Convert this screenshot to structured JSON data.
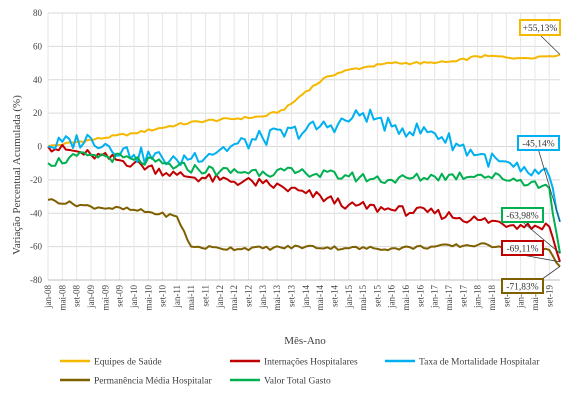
{
  "chart_data": {
    "type": "line",
    "xlabel": "Mês-Ano",
    "ylabel": "Variação Percentual Acumulada (%)",
    "ylim": [
      -80,
      80
    ],
    "yticks": [
      80,
      60,
      40,
      20,
      0,
      -20,
      -40,
      -60,
      -80
    ],
    "grid": true,
    "legend_position": "bottom",
    "x_start": "jan-08",
    "x_end": "dez-19",
    "x_tick_labels": [
      "jan-08",
      "mai-08",
      "set-08",
      "jan-09",
      "mai-09",
      "set-09",
      "jan-10",
      "mai-10",
      "set-10",
      "jan-11",
      "mai-11",
      "set-11",
      "jan-12",
      "mai-12",
      "set-12",
      "jan-13",
      "mai-13",
      "set-13",
      "jan-14",
      "mai-14",
      "set-14",
      "jan-15",
      "mai-15",
      "set-15",
      "jan-16",
      "mai-16",
      "set-16",
      "jan-17",
      "mai-17",
      "set-17",
      "jan-18",
      "mai-18",
      "set-18",
      "jan-19",
      "mai-19",
      "set-19"
    ],
    "series": [
      {
        "name": "Equipes de Saúde",
        "color": "#F5B800",
        "points": [
          [
            "jan-08",
            0
          ],
          [
            "jan-09",
            4
          ],
          [
            "jan-10",
            8
          ],
          [
            "jan-11",
            13
          ],
          [
            "jul-11",
            15
          ],
          [
            "jan-12",
            16
          ],
          [
            "jan-13",
            18
          ],
          [
            "jul-13",
            22
          ],
          [
            "jan-14",
            33
          ],
          [
            "jul-14",
            42
          ],
          [
            "jan-15",
            46
          ],
          [
            "jul-15",
            48
          ],
          [
            "jan-16",
            50
          ],
          [
            "jul-16",
            50
          ],
          [
            "jan-17",
            50
          ],
          [
            "jul-17",
            51
          ],
          [
            "jan-18",
            54
          ],
          [
            "jul-18",
            54
          ],
          [
            "jan-19",
            53
          ],
          [
            "jul-19",
            54
          ],
          [
            "dez-19",
            55.13
          ]
        ]
      },
      {
        "name": "Internações Hospitalares",
        "color": "#C00000",
        "points": [
          [
            "jan-08",
            0
          ],
          [
            "jan-09",
            -5
          ],
          [
            "jan-10",
            -10
          ],
          [
            "jan-11",
            -17
          ],
          [
            "jan-12",
            -20
          ],
          [
            "jan-13",
            -22
          ],
          [
            "jan-14",
            -28
          ],
          [
            "jan-15",
            -35
          ],
          [
            "jan-16",
            -38
          ],
          [
            "jan-17",
            -40
          ],
          [
            "jan-18",
            -44
          ],
          [
            "jan-19",
            -47
          ],
          [
            "set-19",
            -48
          ],
          [
            "dez-19",
            -69.11
          ]
        ]
      },
      {
        "name": "Taxa de Mortalidade Hospitalar",
        "color": "#00B0F0",
        "points": [
          [
            "jan-08",
            0
          ],
          [
            "jan-09",
            5
          ],
          [
            "jan-10",
            -5
          ],
          [
            "jan-11",
            -8
          ],
          [
            "jan-12",
            -2
          ],
          [
            "jan-13",
            5
          ],
          [
            "jan-14",
            10
          ],
          [
            "jan-15",
            15
          ],
          [
            "mai-15",
            20
          ],
          [
            "jan-16",
            12
          ],
          [
            "jan-17",
            8
          ],
          [
            "jan-18",
            -5
          ],
          [
            "jan-19",
            -15
          ],
          [
            "set-19",
            -18
          ],
          [
            "dez-19",
            -45.14
          ]
        ]
      },
      {
        "name": "Permanência Média Hospitalar",
        "color": "#7F6000",
        "points": [
          [
            "jan-08",
            -32
          ],
          [
            "jan-09",
            -36
          ],
          [
            "jan-10",
            -38
          ],
          [
            "jan-11",
            -42
          ],
          [
            "mai-11",
            -60
          ],
          [
            "jan-12",
            -61
          ],
          [
            "jan-13",
            -61
          ],
          [
            "jan-14",
            -60
          ],
          [
            "jan-15",
            -61
          ],
          [
            "jan-16",
            -61
          ],
          [
            "jan-17",
            -60
          ],
          [
            "jan-18",
            -59
          ],
          [
            "jan-19",
            -60
          ],
          [
            "set-19",
            -62
          ],
          [
            "dez-19",
            -71.83
          ]
        ]
      },
      {
        "name": "Valor Total Gasto",
        "color": "#00B050",
        "points": [
          [
            "jan-08",
            -10
          ],
          [
            "jan-09",
            -5
          ],
          [
            "jan-10",
            -8
          ],
          [
            "jan-11",
            -12
          ],
          [
            "jan-12",
            -15
          ],
          [
            "jan-13",
            -15
          ],
          [
            "jan-14",
            -16
          ],
          [
            "jan-15",
            -18
          ],
          [
            "jan-16",
            -20
          ],
          [
            "jan-17",
            -18
          ],
          [
            "jan-18",
            -17
          ],
          [
            "jan-19",
            -20
          ],
          [
            "set-19",
            -25
          ],
          [
            "dez-19",
            -63.98
          ]
        ]
      }
    ],
    "annotations": [
      {
        "text": "+55,13%",
        "series": "Equipes de Saúde",
        "color": "#F5B800"
      },
      {
        "text": "-45,14%",
        "series": "Taxa de Mortalidade Hospitalar",
        "color": "#00B0F0"
      },
      {
        "text": "-63,98%",
        "series": "Valor Total Gasto",
        "color": "#00B050"
      },
      {
        "text": "-69,11%",
        "series": "Internações Hospitalares",
        "color": "#C00000"
      },
      {
        "text": "-71,83%",
        "series": "Permanência Média Hospitalar",
        "color": "#7F6000"
      }
    ]
  }
}
